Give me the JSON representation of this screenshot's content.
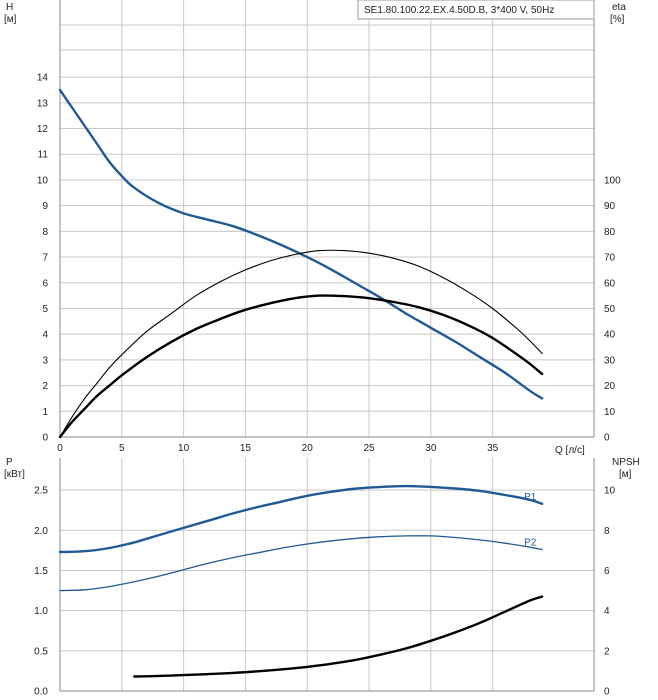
{
  "model_label": "SE1.80.100.22.EX.4.50D.B, 3*400 V, 50Hz",
  "top": {
    "y_left_label": "H",
    "y_left_unit": "[м]",
    "y_right_label": "eta",
    "y_right_unit": "[%]",
    "x_label": "Q [л/с]"
  },
  "bottom": {
    "y_left_label": "P",
    "y_left_unit": "[кВт]",
    "y_right_label": "NPSH",
    "y_right_unit": "[м]"
  },
  "colors": {
    "blue": "#1f5a96",
    "black": "#000000",
    "grid": "#c8c8c8"
  },
  "chart_data": [
    {
      "type": "line",
      "x_ticks": [
        "0",
        "5",
        "10",
        "15",
        "20",
        "25",
        "30",
        "35"
      ],
      "xlim": [
        0,
        43.2
      ],
      "y_left_ticks": [
        "0",
        "1",
        "2",
        "3",
        "4",
        "5",
        "6",
        "7",
        "8",
        "9",
        "10",
        "11",
        "12",
        "13",
        "14"
      ],
      "ylim_left": [
        0,
        17
      ],
      "y_right_ticks": [
        "0",
        "10",
        "20",
        "30",
        "40",
        "50",
        "60",
        "70",
        "80",
        "90",
        "100"
      ],
      "ylim_right": [
        0,
        170
      ],
      "series": [
        {
          "axis": "left",
          "style": "blue-thick",
          "x": [
            0,
            1,
            2,
            3,
            4,
            5,
            6,
            8,
            10,
            12,
            14,
            16,
            18,
            20,
            22,
            24,
            26,
            28,
            30,
            32,
            34,
            36,
            38,
            39
          ],
          "values": [
            13.5,
            12.8,
            12.1,
            11.4,
            10.7,
            10.15,
            9.7,
            9.1,
            8.7,
            8.45,
            8.2,
            7.85,
            7.45,
            7.0,
            6.5,
            5.95,
            5.4,
            4.8,
            4.25,
            3.7,
            3.1,
            2.5,
            1.8,
            1.5
          ]
        },
        {
          "axis": "right",
          "style": "black-thin",
          "x": [
            0,
            1,
            2,
            3,
            4,
            5,
            7,
            9,
            11,
            13,
            15,
            17,
            19,
            21,
            23,
            25,
            27,
            29,
            31,
            33,
            35,
            37,
            38,
            39
          ],
          "values": [
            0,
            8,
            15,
            21,
            27,
            32,
            41,
            48,
            55,
            60.5,
            65,
            68.5,
            71,
            72.5,
            72.5,
            71.5,
            69.5,
            66.5,
            62,
            56.5,
            50,
            42,
            37.5,
            32.5
          ]
        },
        {
          "axis": "right",
          "style": "black-thick",
          "x": [
            0,
            1,
            2,
            3,
            4,
            5,
            7,
            9,
            11,
            13,
            15,
            17,
            19,
            21,
            23,
            25,
            27,
            29,
            31,
            33,
            35,
            37,
            38,
            39
          ],
          "values": [
            0,
            6,
            11,
            16,
            20,
            24,
            31,
            37,
            42,
            46,
            49.5,
            52,
            54,
            55,
            54.8,
            54,
            52.5,
            50.5,
            47.5,
            43.5,
            38.5,
            32,
            28.5,
            24.5
          ]
        }
      ]
    },
    {
      "type": "line",
      "x_ticks": [
        "0",
        "5",
        "10",
        "15",
        "20",
        "25",
        "30",
        "35"
      ],
      "xlim": [
        0,
        43.2
      ],
      "y_left_ticks": [
        "0.0",
        "0.5",
        "1.0",
        "1.5",
        "2.0",
        "2.5"
      ],
      "ylim_left": [
        0,
        2.9
      ],
      "y_right_ticks": [
        "0",
        "2",
        "4",
        "6",
        "8",
        "10"
      ],
      "ylim_right": [
        0,
        11.6
      ],
      "series": [
        {
          "axis": "left",
          "style": "blue-thick",
          "name": "P1",
          "x": [
            0,
            2,
            4,
            6,
            8,
            10,
            12,
            14,
            16,
            18,
            20,
            22,
            24,
            26,
            28,
            30,
            32,
            34,
            36,
            38,
            39
          ],
          "values": [
            1.73,
            1.74,
            1.78,
            1.85,
            1.94,
            2.03,
            2.12,
            2.21,
            2.29,
            2.36,
            2.43,
            2.48,
            2.52,
            2.54,
            2.55,
            2.54,
            2.52,
            2.49,
            2.44,
            2.38,
            2.33
          ]
        },
        {
          "axis": "left",
          "style": "blue-thin",
          "name": "P2",
          "x": [
            0,
            2,
            4,
            6,
            8,
            10,
            12,
            14,
            16,
            18,
            20,
            22,
            24,
            26,
            28,
            30,
            32,
            34,
            36,
            38,
            39
          ],
          "values": [
            1.25,
            1.26,
            1.3,
            1.36,
            1.43,
            1.51,
            1.59,
            1.66,
            1.72,
            1.78,
            1.83,
            1.87,
            1.9,
            1.92,
            1.93,
            1.93,
            1.91,
            1.88,
            1.84,
            1.79,
            1.76
          ]
        },
        {
          "axis": "right",
          "style": "black-thick",
          "x": [
            6,
            8,
            10,
            12,
            14,
            16,
            18,
            20,
            22,
            24,
            26,
            28,
            30,
            32,
            34,
            36,
            38,
            39
          ],
          "values": [
            0.72,
            0.75,
            0.79,
            0.84,
            0.9,
            0.98,
            1.08,
            1.2,
            1.36,
            1.56,
            1.82,
            2.12,
            2.5,
            2.92,
            3.4,
            3.95,
            4.5,
            4.7
          ]
        }
      ]
    }
  ]
}
